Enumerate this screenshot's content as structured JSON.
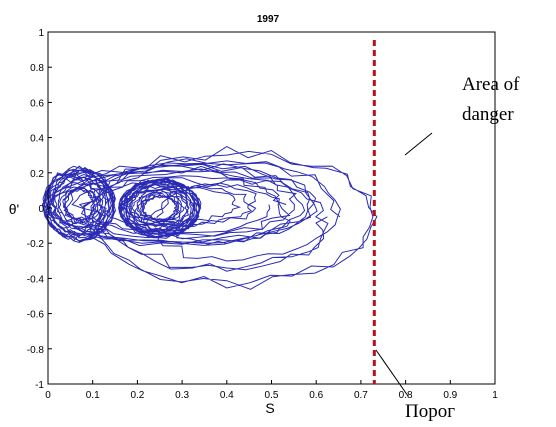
{
  "chart_data": {
    "type": "line",
    "title": "1997",
    "xlabel": "S",
    "ylabel": "θ'",
    "xlim": [
      0,
      1
    ],
    "ylim": [
      -1,
      1
    ],
    "xticks": [
      "0",
      "0.1",
      "0.2",
      "0.3",
      "0.4",
      "0.5",
      "0.6",
      "0.7",
      "0.8",
      "0.9",
      "1"
    ],
    "yticks": [
      "1",
      "0.8",
      "0.6",
      "0.4",
      "0.2",
      "0",
      "-0.2",
      "-0.4",
      "-0.6",
      "-0.8",
      "-1"
    ],
    "grid": false,
    "series_color": "#2a2ab5",
    "threshold": {
      "x": 0.73,
      "color": "#b5121b",
      "style": "dashed"
    },
    "annotations": [
      {
        "text_lines": [
          "Area of",
          "danger"
        ]
      },
      {
        "text": "Порог"
      }
    ],
    "trajectory_loops": [
      {
        "cx": 0.07,
        "cy": 0.02,
        "rx": 0.08,
        "ry": 0.22,
        "turns": 18
      },
      {
        "cx": 0.25,
        "cy": 0.0,
        "rx": 0.09,
        "ry": 0.18,
        "turns": 22
      },
      {
        "cx": 0.3,
        "cy": 0.02,
        "rx": 0.3,
        "ry": 0.25,
        "turns": 10
      },
      {
        "cx": 0.4,
        "cy": -0.05,
        "rx": 0.33,
        "ry": 0.42,
        "turns": 6
      }
    ]
  }
}
